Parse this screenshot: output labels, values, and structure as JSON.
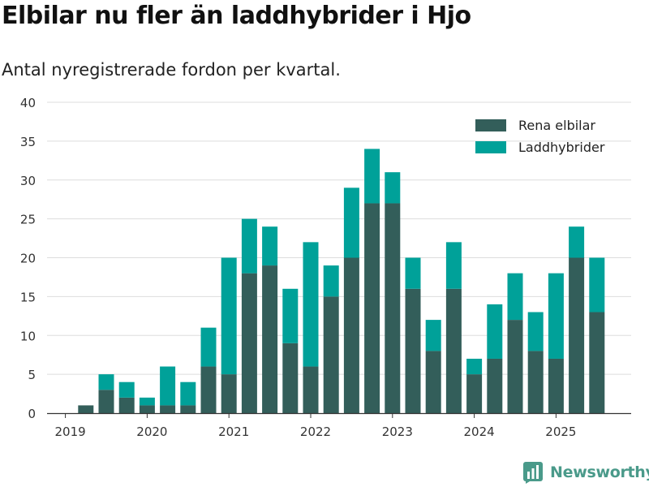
{
  "title": "Elbilar nu fler än laddhybrider i Hjo",
  "subtitle": "Antal nyregistrerade fordon per kvartal.",
  "brand": {
    "name": "Newsworthy",
    "icon": "newsworthy-logo-icon"
  },
  "chart_data": {
    "type": "bar",
    "stacked": true,
    "title": "Elbilar nu fler än laddhybrider i Hjo",
    "subtitle": "Antal nyregistrerade fordon per kvartal.",
    "xlabel": "",
    "ylabel": "",
    "ylim": [
      0,
      40
    ],
    "yticks": [
      0,
      5,
      10,
      15,
      20,
      25,
      30,
      35,
      40
    ],
    "grid": true,
    "legend_position": "top-right",
    "categories": [
      "2019 Q1",
      "2019 Q2",
      "2019 Q3",
      "2019 Q4",
      "2020 Q1",
      "2020 Q2",
      "2020 Q3",
      "2020 Q4",
      "2021 Q1",
      "2021 Q2",
      "2021 Q3",
      "2021 Q4",
      "2022 Q1",
      "2022 Q2",
      "2022 Q3",
      "2022 Q4",
      "2023 Q1",
      "2023 Q2",
      "2023 Q3",
      "2023 Q4",
      "2024 Q1",
      "2024 Q2",
      "2024 Q3",
      "2024 Q4",
      "2025 Q1",
      "2025 Q2",
      "2025 Q3"
    ],
    "x_tick_labels": [
      {
        "label": "2019",
        "index": 0
      },
      {
        "label": "2020",
        "index": 4
      },
      {
        "label": "2021",
        "index": 8
      },
      {
        "label": "2022",
        "index": 12
      },
      {
        "label": "2023",
        "index": 16
      },
      {
        "label": "2024",
        "index": 20
      },
      {
        "label": "2025",
        "index": 24
      }
    ],
    "series": [
      {
        "name": "Rena elbilar",
        "color": "#335e5a",
        "values": [
          0,
          1,
          3,
          2,
          1,
          1,
          1,
          6,
          5,
          18,
          19,
          9,
          6,
          15,
          20,
          27,
          27,
          16,
          8,
          16,
          5,
          7,
          12,
          8,
          7,
          20,
          13
        ]
      },
      {
        "name": "Laddhybrider",
        "color": "#00a199",
        "values": [
          0,
          0,
          2,
          2,
          1,
          5,
          3,
          5,
          15,
          7,
          5,
          7,
          16,
          4,
          9,
          7,
          4,
          4,
          4,
          6,
          2,
          7,
          6,
          5,
          11,
          4,
          7
        ]
      }
    ]
  }
}
